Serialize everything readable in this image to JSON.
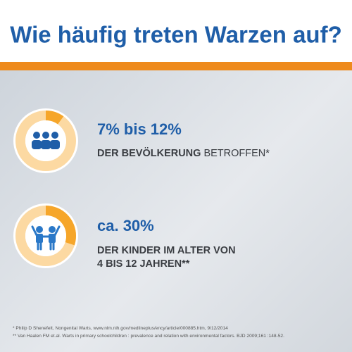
{
  "header": {
    "title": "Wie häufig treten Warzen auf?"
  },
  "stats": [
    {
      "headline": "7% bis 12%",
      "label_bold": "DER BEVÖLKERUNG",
      "label_rest": "BETROFFEN*"
    },
    {
      "headline": "ca. 30%",
      "label_lines": [
        "DER KINDER IM ALTER VON",
        "4 BIS 12 JAHREN**"
      ]
    }
  ],
  "footnotes": [
    "* Philip D Shenefelt, Nongenital Warts, www.nlm.nih.gov/medlineplus/ency/article/000885.htm, 9/12/2014",
    "** Van Haalen FM et.al. Warts in primary schoolchildren : prevalence and relation with environmental factors. BJD 2009;161 :148-52."
  ]
}
